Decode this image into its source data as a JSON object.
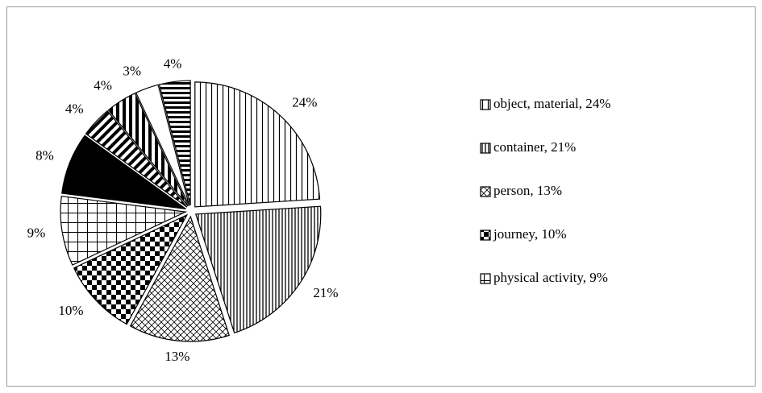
{
  "chart_data": {
    "type": "pie",
    "values": [
      24,
      21,
      13,
      10,
      9,
      8,
      4,
      4,
      3,
      4
    ],
    "value_labels": [
      "24%",
      "21%",
      "13%",
      "10%",
      "9%",
      "8%",
      "4%",
      "4%",
      "3%",
      "4%"
    ],
    "patterns": [
      "vertical",
      "vertical-dense",
      "diamond",
      "checker",
      "grid",
      "solid",
      "diagonal",
      "vertical-wide",
      "none",
      "horizontal"
    ],
    "legend": [
      "object, material, 24%",
      "container, 21%",
      "person, 13%",
      "journey, 10%",
      "physical activity, 9%"
    ]
  }
}
